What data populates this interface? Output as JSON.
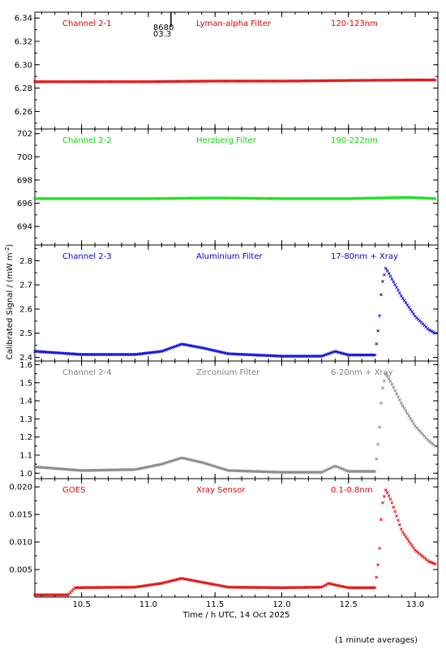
{
  "chart_data": [
    {
      "type": "scatter",
      "channel_label": "Channel 2-1",
      "filter_label": "Lyman-alpha Filter",
      "band_label": "120-123nm",
      "color": "#e00000",
      "ylim": [
        6.245,
        6.345
      ],
      "yticks": [
        "6.26",
        "6.28",
        "6.30",
        "6.32",
        "6.34"
      ],
      "marker_label_top": "8680",
      "marker_label_bottom": "03.3",
      "marker_x": 11.17,
      "series": [
        {
          "x": [
            10.15,
            10.5,
            11.0,
            11.5,
            12.0,
            12.5,
            13.0,
            13.15
          ],
          "values": [
            6.2855,
            6.2855,
            6.2855,
            6.286,
            6.286,
            6.2865,
            6.287,
            6.287
          ]
        }
      ]
    },
    {
      "type": "scatter",
      "channel_label": "Channel 2-2",
      "filter_label": "Herzberg Filter",
      "band_label": "190-222nm",
      "color": "#00e000",
      "ylim": [
        692.4,
        702.4
      ],
      "yticks": [
        "694",
        "696",
        "698",
        "700",
        "702"
      ],
      "series": [
        {
          "x": [
            10.15,
            10.5,
            11.0,
            11.5,
            12.0,
            12.5,
            12.95,
            13.15
          ],
          "values": [
            696.4,
            696.4,
            696.4,
            696.45,
            696.4,
            696.4,
            696.5,
            696.4
          ]
        }
      ]
    },
    {
      "type": "scatter",
      "channel_label": "Channel 2-3",
      "filter_label": "Aluminium Filter",
      "band_label": "17-80nm + Xray",
      "color": "#0000dd",
      "ylim": [
        2.385,
        2.865
      ],
      "yticks": [
        "2.4",
        "2.5",
        "2.6",
        "2.7",
        "2.8"
      ],
      "series": [
        {
          "x": [
            10.15,
            10.5,
            10.9,
            11.1,
            11.25,
            11.4,
            11.6,
            12.0,
            12.3,
            12.4,
            12.5,
            12.7,
            12.73,
            12.75,
            12.78,
            12.82,
            12.9,
            13.0,
            13.1,
            13.15
          ],
          "values": [
            2.425,
            2.412,
            2.412,
            2.425,
            2.455,
            2.44,
            2.415,
            2.405,
            2.405,
            2.425,
            2.41,
            2.41,
            2.55,
            2.7,
            2.77,
            2.73,
            2.65,
            2.57,
            2.515,
            2.5
          ]
        }
      ]
    },
    {
      "type": "scatter",
      "channel_label": "Channel 2-4",
      "filter_label": "Zirconium Filter",
      "band_label": "6-20nm + Xray",
      "color": "#808080",
      "ylim": [
        0.97,
        1.62
      ],
      "yticks": [
        "1.0",
        "1.1",
        "1.2",
        "1.3",
        "1.4",
        "1.5",
        "1.6"
      ],
      "series": [
        {
          "x": [
            10.15,
            10.5,
            10.9,
            11.1,
            11.25,
            11.4,
            11.6,
            12.0,
            12.3,
            12.4,
            12.5,
            12.7,
            12.73,
            12.75,
            12.78,
            12.82,
            12.9,
            13.0,
            13.1,
            13.15
          ],
          "values": [
            1.035,
            1.015,
            1.02,
            1.05,
            1.085,
            1.06,
            1.015,
            1.005,
            1.005,
            1.04,
            1.01,
            1.01,
            1.22,
            1.45,
            1.55,
            1.5,
            1.38,
            1.26,
            1.18,
            1.15
          ]
        }
      ]
    },
    {
      "type": "scatter",
      "channel_label": "GOES",
      "filter_label": "Xray Sensor",
      "band_label": "0.1-0.8nm",
      "color": "#e00000",
      "ylim": [
        0.0,
        0.0215
      ],
      "yticks": [
        "0.005",
        "0.010",
        "0.015",
        "0.020"
      ],
      "xlim": [
        10.15,
        13.17
      ],
      "xticks": [
        "10.5",
        "11.0",
        "11.5",
        "12.0",
        "12.5",
        "13.0"
      ],
      "xlabel": "Time / h UTC, 14 Oct 2025",
      "series": [
        {
          "x": [
            10.15,
            10.4,
            10.45,
            10.9,
            11.1,
            11.25,
            11.4,
            11.6,
            12.0,
            12.3,
            12.35,
            12.4,
            12.5,
            12.7,
            12.73,
            12.75,
            12.78,
            12.82,
            12.9,
            13.0,
            13.1,
            13.15
          ],
          "values": [
            0.0004,
            0.0004,
            0.0017,
            0.0018,
            0.0025,
            0.0034,
            0.0027,
            0.0018,
            0.0017,
            0.0018,
            0.0025,
            0.0022,
            0.0017,
            0.0017,
            0.0075,
            0.0165,
            0.0195,
            0.0175,
            0.012,
            0.0085,
            0.0065,
            0.006
          ]
        }
      ]
    }
  ],
  "ylabel": "Calibrated Signal / (mW m",
  "ylabel_exponent": "-2",
  "ylabel_close": ")",
  "footnote": "(1 minute averages)"
}
